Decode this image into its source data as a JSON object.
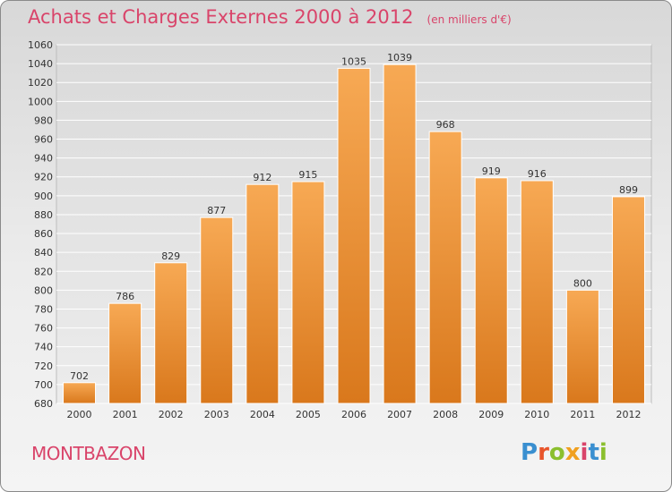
{
  "header": {
    "title": "Achats et Charges Externes 2000 à 2012",
    "subtitle": "(en milliers d'€)"
  },
  "footer": {
    "town": "MONTBAZON",
    "logo": "Proxiti"
  },
  "colors": {
    "accent": "#d9446a",
    "bar_top": "#f5a24f",
    "bar_bottom": "#d97a1e"
  },
  "chart_data": {
    "type": "bar",
    "categories": [
      "2000",
      "2001",
      "2002",
      "2003",
      "2004",
      "2005",
      "2006",
      "2007",
      "2008",
      "2009",
      "2010",
      "2011",
      "2012"
    ],
    "values": [
      702,
      786,
      829,
      877,
      912,
      915,
      1035,
      1039,
      968,
      919,
      916,
      800,
      899
    ],
    "ylim": [
      680,
      1060
    ],
    "yticks": [
      680,
      700,
      720,
      740,
      760,
      780,
      800,
      820,
      840,
      860,
      880,
      900,
      920,
      940,
      960,
      980,
      1000,
      1020,
      1040,
      1060
    ],
    "grid": true,
    "data_labels": true
  }
}
